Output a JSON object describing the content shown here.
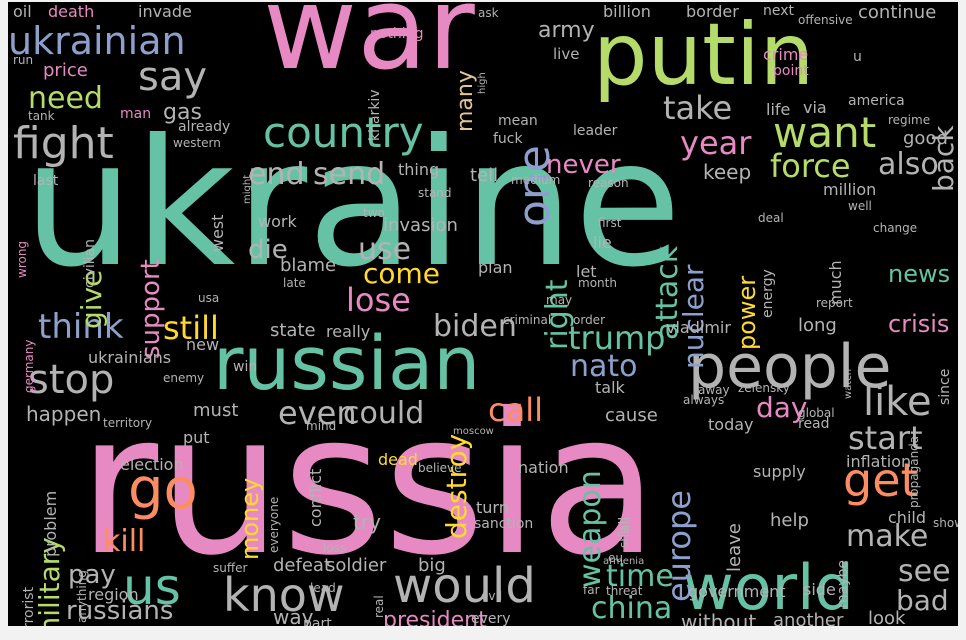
{
  "palette": {
    "pink": "#e78ac3",
    "green": "#b5db6a",
    "teal": "#66c2a5",
    "orange": "#fc8d62",
    "blue": "#8da0cb",
    "yellow": "#ffd92f",
    "tan": "#e5c494",
    "gray": "#b3b3b3"
  },
  "words": [
    {
      "text": "war",
      "color": "pink"
    },
    {
      "text": "putin",
      "color": "green"
    },
    {
      "text": "ukraine",
      "color": "teal"
    },
    {
      "text": "russia",
      "color": "pink"
    },
    {
      "text": "russian",
      "color": "teal"
    },
    {
      "text": "people",
      "color": "gray"
    },
    {
      "text": "world",
      "color": "teal"
    },
    {
      "text": "country",
      "color": "teal"
    },
    {
      "text": "ukrainian",
      "color": "blue"
    },
    {
      "text": "say",
      "color": "gray"
    },
    {
      "text": "fight",
      "color": "gray"
    },
    {
      "text": "want",
      "color": "green"
    },
    {
      "text": "one",
      "color": "blue"
    },
    {
      "text": "would",
      "color": "gray"
    },
    {
      "text": "go",
      "color": "orange"
    },
    {
      "text": "us",
      "color": "teal"
    },
    {
      "text": "know",
      "color": "gray"
    },
    {
      "text": "get",
      "color": "orange"
    },
    {
      "text": "stop",
      "color": "gray"
    },
    {
      "text": "think",
      "color": "blue"
    },
    {
      "text": "like",
      "color": "gray"
    },
    {
      "text": "take",
      "color": "gray"
    },
    {
      "text": "year",
      "color": "pink"
    },
    {
      "text": "force",
      "color": "green"
    },
    {
      "text": "also",
      "color": "gray"
    },
    {
      "text": "back",
      "color": "gray"
    },
    {
      "text": "need",
      "color": "green"
    },
    {
      "text": "send",
      "color": "gray"
    },
    {
      "text": "end",
      "color": "gray"
    },
    {
      "text": "never",
      "color": "pink"
    },
    {
      "text": "attack",
      "color": "teal"
    },
    {
      "text": "nuclear",
      "color": "blue"
    },
    {
      "text": "right",
      "color": "teal"
    },
    {
      "text": "lose",
      "color": "pink"
    },
    {
      "text": "still",
      "color": "yellow"
    },
    {
      "text": "biden",
      "color": "gray"
    },
    {
      "text": "trump",
      "color": "teal"
    },
    {
      "text": "nato",
      "color": "blue"
    },
    {
      "text": "use",
      "color": "gray"
    },
    {
      "text": "come",
      "color": "yellow"
    },
    {
      "text": "die",
      "color": "gray"
    },
    {
      "text": "support",
      "color": "pink"
    },
    {
      "text": "give",
      "color": "green"
    },
    {
      "text": "military",
      "color": "green"
    },
    {
      "text": "even",
      "color": "gray"
    },
    {
      "text": "could",
      "color": "gray"
    },
    {
      "text": "call",
      "color": "orange"
    },
    {
      "text": "day",
      "color": "pink"
    },
    {
      "text": "start",
      "color": "gray"
    },
    {
      "text": "destroy",
      "color": "yellow"
    },
    {
      "text": "weapon",
      "color": "teal"
    },
    {
      "text": "europe",
      "color": "blue"
    },
    {
      "text": "make",
      "color": "gray"
    },
    {
      "text": "see",
      "color": "gray"
    },
    {
      "text": "bad",
      "color": "gray"
    },
    {
      "text": "time",
      "color": "teal"
    },
    {
      "text": "china",
      "color": "teal"
    },
    {
      "text": "kill",
      "color": "orange"
    },
    {
      "text": "pay",
      "color": "gray"
    },
    {
      "text": "russians",
      "color": "gray"
    },
    {
      "text": "president",
      "color": "pink"
    },
    {
      "text": "money",
      "color": "yellow"
    },
    {
      "text": "power",
      "color": "yellow"
    },
    {
      "text": "crisis",
      "color": "pink"
    },
    {
      "text": "news",
      "color": "teal"
    },
    {
      "text": "many",
      "color": "tan"
    },
    {
      "text": "army",
      "color": "gray"
    },
    {
      "text": "gas",
      "color": "gray"
    },
    {
      "text": "price",
      "color": "pink"
    },
    {
      "text": "oil",
      "color": "gray"
    },
    {
      "text": "death",
      "color": "pink"
    },
    {
      "text": "invade",
      "color": "gray"
    },
    {
      "text": "billion",
      "color": "gray"
    },
    {
      "text": "border",
      "color": "gray"
    },
    {
      "text": "next",
      "color": "gray"
    },
    {
      "text": "offensive",
      "color": "gray"
    },
    {
      "text": "continue",
      "color": "gray"
    },
    {
      "text": "nothing",
      "color": "pink"
    },
    {
      "text": "crime",
      "color": "pink"
    },
    {
      "text": "point",
      "color": "pink"
    },
    {
      "text": "live",
      "color": "gray"
    },
    {
      "text": "ask",
      "color": "gray"
    },
    {
      "text": "kharkiv",
      "color": "gray"
    },
    {
      "text": "america",
      "color": "gray"
    },
    {
      "text": "regime",
      "color": "gray"
    },
    {
      "text": "good",
      "color": "gray"
    },
    {
      "text": "life",
      "color": "gray"
    },
    {
      "text": "via",
      "color": "gray"
    },
    {
      "text": "leader",
      "color": "gray"
    },
    {
      "text": "mean",
      "color": "gray"
    },
    {
      "text": "fuck",
      "color": "gray"
    },
    {
      "text": "man",
      "color": "pink"
    },
    {
      "text": "already",
      "color": "gray"
    },
    {
      "text": "western",
      "color": "gray"
    },
    {
      "text": "tank",
      "color": "gray"
    },
    {
      "text": "keep",
      "color": "gray"
    },
    {
      "text": "thing",
      "color": "gray"
    },
    {
      "text": "tell",
      "color": "gray"
    },
    {
      "text": "medium",
      "color": "gray"
    },
    {
      "text": "reason",
      "color": "gray"
    },
    {
      "text": "million",
      "color": "gray"
    },
    {
      "text": "well",
      "color": "gray"
    },
    {
      "text": "last",
      "color": "gray"
    },
    {
      "text": "west",
      "color": "gray"
    },
    {
      "text": "might",
      "color": "gray"
    },
    {
      "text": "stand",
      "color": "gray"
    },
    {
      "text": "two",
      "color": "gray"
    },
    {
      "text": "first",
      "color": "gray"
    },
    {
      "text": "lie",
      "color": "gray"
    },
    {
      "text": "deal",
      "color": "gray"
    },
    {
      "text": "change",
      "color": "gray"
    },
    {
      "text": "invasion",
      "color": "gray"
    },
    {
      "text": "work",
      "color": "gray"
    },
    {
      "text": "blame",
      "color": "gray"
    },
    {
      "text": "late",
      "color": "gray"
    },
    {
      "text": "plan",
      "color": "gray"
    },
    {
      "text": "let",
      "color": "gray"
    },
    {
      "text": "month",
      "color": "gray"
    },
    {
      "text": "energy",
      "color": "gray"
    },
    {
      "text": "much",
      "color": "gray"
    },
    {
      "text": "wrong",
      "color": "pink"
    },
    {
      "text": "civilian",
      "color": "gray"
    },
    {
      "text": "usa",
      "color": "gray"
    },
    {
      "text": "may",
      "color": "gray"
    },
    {
      "text": "report",
      "color": "gray"
    },
    {
      "text": "state",
      "color": "gray"
    },
    {
      "text": "really",
      "color": "gray"
    },
    {
      "text": "criminal",
      "color": "gray"
    },
    {
      "text": "order",
      "color": "gray"
    },
    {
      "text": "vladimir",
      "color": "gray"
    },
    {
      "text": "long",
      "color": "gray"
    },
    {
      "text": "germany",
      "color": "pink"
    },
    {
      "text": "new",
      "color": "gray"
    },
    {
      "text": "ukrainians",
      "color": "gray"
    },
    {
      "text": "win",
      "color": "gray"
    },
    {
      "text": "enemy",
      "color": "gray"
    },
    {
      "text": "talk",
      "color": "gray"
    },
    {
      "text": "away",
      "color": "gray"
    },
    {
      "text": "zelensky",
      "color": "gray"
    },
    {
      "text": "watch",
      "color": "gray"
    },
    {
      "text": "since",
      "color": "gray"
    },
    {
      "text": "happen",
      "color": "gray"
    },
    {
      "text": "must",
      "color": "gray"
    },
    {
      "text": "territory",
      "color": "gray"
    },
    {
      "text": "mind",
      "color": "gray"
    },
    {
      "text": "moscow",
      "color": "gray"
    },
    {
      "text": "cause",
      "color": "gray"
    },
    {
      "text": "always",
      "color": "gray"
    },
    {
      "text": "global",
      "color": "gray"
    },
    {
      "text": "today",
      "color": "gray"
    },
    {
      "text": "read",
      "color": "gray"
    },
    {
      "text": "put",
      "color": "gray"
    },
    {
      "text": "election",
      "color": "gray"
    },
    {
      "text": "conflict",
      "color": "gray"
    },
    {
      "text": "dead",
      "color": "yellow"
    },
    {
      "text": "believe",
      "color": "gray"
    },
    {
      "text": "nation",
      "color": "gray"
    },
    {
      "text": "supply",
      "color": "gray"
    },
    {
      "text": "inflation",
      "color": "gray"
    },
    {
      "text": "propaganda",
      "color": "gray"
    },
    {
      "text": "problem",
      "color": "gray"
    },
    {
      "text": "everyone",
      "color": "gray"
    },
    {
      "text": "turn",
      "color": "gray"
    },
    {
      "text": "sanction",
      "color": "gray"
    },
    {
      "text": "shit",
      "color": "gray"
    },
    {
      "text": "fall",
      "color": "gray"
    },
    {
      "text": "leave",
      "color": "gray"
    },
    {
      "text": "try",
      "color": "gray"
    },
    {
      "text": "help",
      "color": "gray"
    },
    {
      "text": "child",
      "color": "gray"
    },
    {
      "text": "show",
      "color": "gray"
    },
    {
      "text": "terrorist",
      "color": "gray"
    },
    {
      "text": "anything",
      "color": "gray"
    },
    {
      "text": "suffer",
      "color": "gray"
    },
    {
      "text": "defeat",
      "color": "gray"
    },
    {
      "text": "soldier",
      "color": "gray"
    },
    {
      "text": "big",
      "color": "gray"
    },
    {
      "text": "lead",
      "color": "gray"
    },
    {
      "text": "loss",
      "color": "gray"
    },
    {
      "text": "evil",
      "color": "gray"
    },
    {
      "text": "armenia",
      "color": "gray"
    },
    {
      "text": "government",
      "color": "gray"
    },
    {
      "text": "side",
      "color": "gray"
    },
    {
      "text": "maybe",
      "color": "gray"
    },
    {
      "text": "region",
      "color": "gray"
    },
    {
      "text": "way",
      "color": "gray"
    },
    {
      "text": "part",
      "color": "gray"
    },
    {
      "text": "real",
      "color": "gray"
    },
    {
      "text": "every",
      "color": "gray"
    },
    {
      "text": "threat",
      "color": "gray"
    },
    {
      "text": "far",
      "color": "gray"
    },
    {
      "text": "without",
      "color": "gray"
    },
    {
      "text": "another",
      "color": "gray"
    },
    {
      "text": "look",
      "color": "gray"
    },
    {
      "text": "become",
      "color": "gray"
    },
    {
      "text": "run",
      "color": "gray"
    },
    {
      "text": "high",
      "color": "gray"
    },
    {
      "text": "eu",
      "color": "gray"
    },
    {
      "text": "u",
      "color": "gray"
    }
  ]
}
